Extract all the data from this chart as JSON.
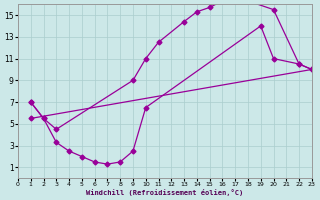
{
  "xlabel": "Windchill (Refroidissement éolien,°C)",
  "bg_color": "#cce8e8",
  "line_color": "#990099",
  "xlim": [
    0,
    23
  ],
  "ylim": [
    0,
    16
  ],
  "xticks": [
    0,
    1,
    2,
    3,
    4,
    5,
    6,
    7,
    8,
    9,
    10,
    11,
    12,
    13,
    14,
    15,
    16,
    17,
    18,
    19,
    20,
    21,
    22,
    23
  ],
  "yticks": [
    1,
    3,
    5,
    7,
    9,
    11,
    13,
    15
  ],
  "grid_color": "#aacece",
  "line1_x": [
    1,
    2,
    3,
    9,
    10,
    11,
    13,
    14,
    15,
    16,
    17,
    18,
    20,
    22,
    23
  ],
  "line1_y": [
    7,
    5.5,
    4.5,
    9.0,
    11.0,
    12.5,
    14.4,
    15.3,
    15.7,
    16.3,
    16.3,
    16.3,
    15.5,
    10.5,
    10.0
  ],
  "line2_x": [
    1,
    2,
    3,
    4,
    5,
    6,
    7,
    8,
    9,
    10,
    19,
    20,
    22,
    23
  ],
  "line2_y": [
    7,
    5.5,
    3.3,
    2.5,
    2.0,
    1.5,
    1.3,
    1.5,
    2.5,
    6.5,
    14.0,
    11.0,
    10.5,
    10.0
  ],
  "line3_x": [
    1,
    23
  ],
  "line3_y": [
    5.5,
    10.0
  ]
}
